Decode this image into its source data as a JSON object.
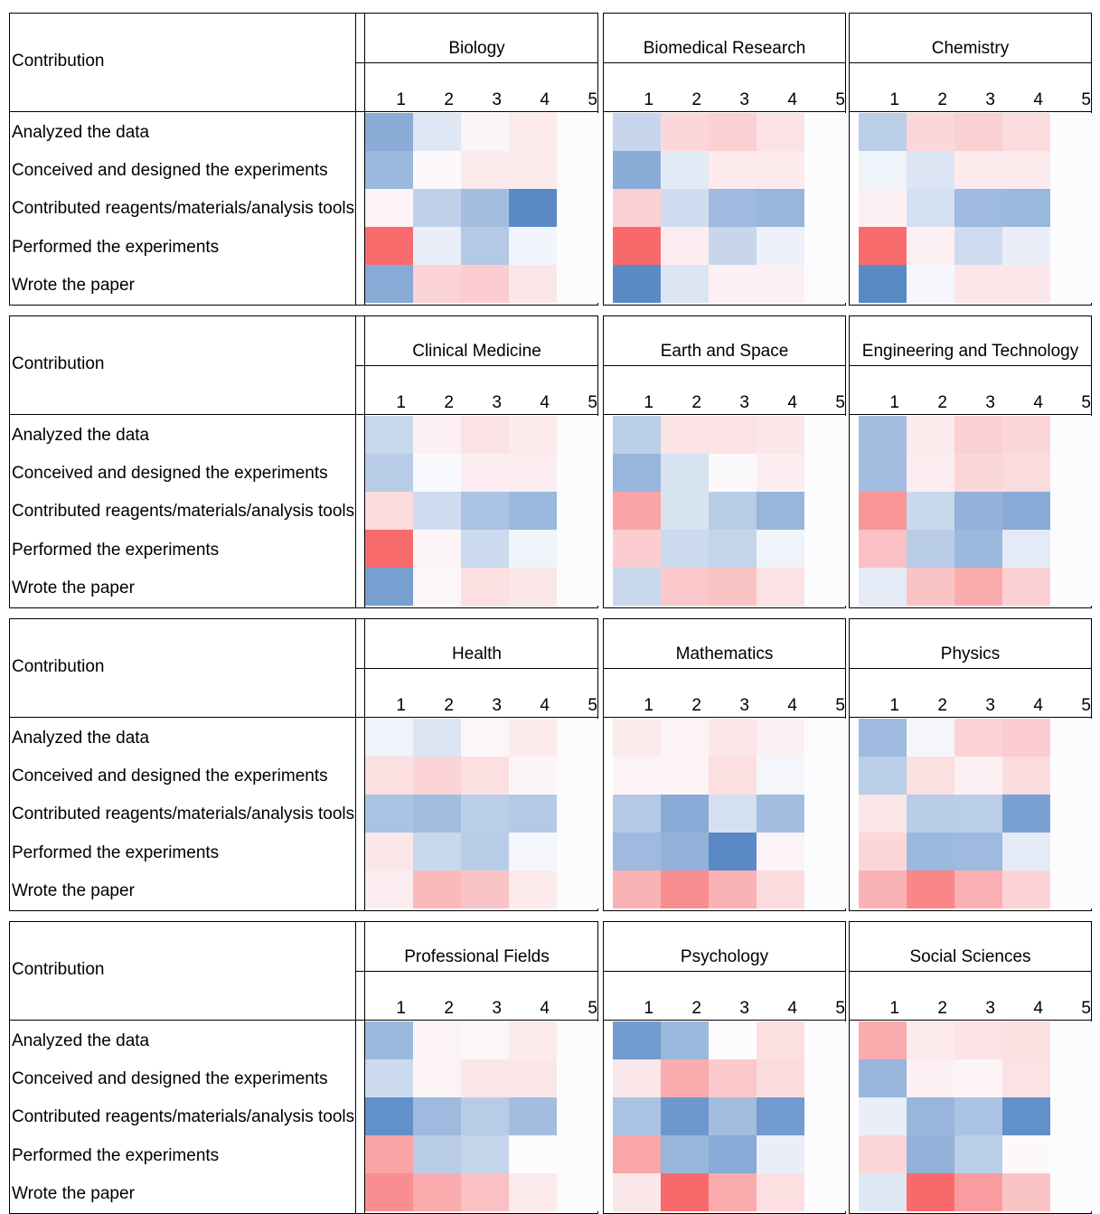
{
  "chart_data": {
    "type": "heatmap",
    "row_header": "Contribution",
    "rows": [
      "Analyzed the data",
      "Conceived and designed the experiments",
      "Contributed reagents/materials/analysis tools",
      "Performed the experiments",
      "Wrote the paper"
    ],
    "columns": [
      "1",
      "2",
      "3",
      "4",
      "5"
    ],
    "color_scale": {
      "low_red": "#f8696b",
      "mid": "#fcfcff",
      "high_blue": "#5a8ac6",
      "range": [
        -1,
        1
      ]
    },
    "panels": [
      {
        "title": "Biology",
        "values": [
          [
            0.7,
            0.18,
            -0.05,
            -0.12,
            0
          ],
          [
            0.6,
            -0.03,
            -0.12,
            -0.12,
            0
          ],
          [
            -0.06,
            0.38,
            0.55,
            1.0,
            0
          ],
          [
            -0.98,
            0.12,
            0.45,
            0.06,
            0
          ],
          [
            0.72,
            -0.28,
            -0.32,
            -0.15,
            0
          ]
        ]
      },
      {
        "title": "Biomedical Research",
        "values": [
          [
            0.33,
            -0.25,
            -0.3,
            -0.18,
            0
          ],
          [
            0.7,
            0.16,
            -0.12,
            -0.12,
            0
          ],
          [
            -0.3,
            0.28,
            0.58,
            0.62,
            0
          ],
          [
            -1.0,
            -0.1,
            0.33,
            0.1,
            0
          ],
          [
            1.0,
            0.2,
            -0.08,
            -0.08,
            0
          ]
        ]
      },
      {
        "title": "Chemistry",
        "values": [
          [
            0.4,
            -0.25,
            -0.3,
            -0.22,
            0
          ],
          [
            0.08,
            0.2,
            -0.12,
            -0.12,
            0
          ],
          [
            -0.08,
            0.25,
            0.58,
            0.6,
            0
          ],
          [
            -0.98,
            -0.08,
            0.28,
            0.12,
            0
          ],
          [
            1.0,
            0.04,
            -0.15,
            -0.15,
            0
          ]
        ]
      },
      {
        "title": "Clinical Medicine",
        "values": [
          [
            0.32,
            -0.08,
            -0.18,
            -0.12,
            0
          ],
          [
            0.42,
            0.02,
            -0.1,
            -0.1,
            0
          ],
          [
            -0.22,
            0.28,
            0.5,
            0.6,
            0
          ],
          [
            -0.98,
            -0.05,
            0.3,
            0.08,
            0
          ],
          [
            0.82,
            -0.04,
            -0.2,
            -0.15,
            0
          ]
        ]
      },
      {
        "title": "Earth and Space",
        "values": [
          [
            0.4,
            -0.18,
            -0.18,
            -0.15,
            0
          ],
          [
            0.62,
            0.22,
            -0.02,
            -0.1,
            0
          ],
          [
            -0.6,
            0.22,
            0.42,
            0.62,
            0
          ],
          [
            -0.32,
            0.3,
            0.35,
            0.08,
            0
          ],
          [
            0.32,
            -0.35,
            -0.38,
            -0.18,
            0
          ]
        ]
      },
      {
        "title": "Engineering and Technology",
        "values": [
          [
            0.55,
            -0.12,
            -0.3,
            -0.25,
            0
          ],
          [
            0.55,
            -0.1,
            -0.25,
            -0.22,
            0
          ],
          [
            -0.7,
            0.32,
            0.65,
            0.72,
            0
          ],
          [
            -0.4,
            0.42,
            0.6,
            0.15,
            0
          ],
          [
            0.15,
            -0.38,
            -0.55,
            -0.3,
            0
          ]
        ]
      },
      {
        "title": "Health",
        "values": [
          [
            0.08,
            0.2,
            -0.04,
            -0.12,
            0
          ],
          [
            -0.2,
            -0.28,
            -0.2,
            -0.05,
            0
          ],
          [
            0.5,
            0.55,
            0.4,
            0.45,
            0
          ],
          [
            -0.15,
            0.32,
            0.42,
            0.05,
            0
          ],
          [
            -0.1,
            -0.45,
            -0.38,
            -0.12,
            0
          ]
        ]
      },
      {
        "title": "Mathematics",
        "values": [
          [
            -0.12,
            -0.06,
            -0.15,
            -0.08,
            0
          ],
          [
            -0.06,
            -0.06,
            -0.2,
            0.05,
            0
          ],
          [
            0.45,
            0.72,
            0.25,
            0.55,
            0
          ],
          [
            0.58,
            0.65,
            1.0,
            -0.06,
            0
          ],
          [
            -0.5,
            -0.75,
            -0.5,
            -0.22,
            0
          ]
        ]
      },
      {
        "title": "Physics",
        "values": [
          [
            0.58,
            0.05,
            -0.28,
            -0.32,
            0
          ],
          [
            0.4,
            -0.2,
            -0.08,
            -0.22,
            0
          ],
          [
            -0.15,
            0.42,
            0.4,
            0.8,
            0
          ],
          [
            -0.25,
            0.6,
            0.58,
            0.15,
            0
          ],
          [
            -0.5,
            -0.8,
            -0.52,
            -0.28,
            0
          ]
        ]
      },
      {
        "title": "Professional Fields",
        "values": [
          [
            0.6,
            -0.06,
            -0.04,
            -0.12,
            0
          ],
          [
            0.3,
            -0.06,
            -0.15,
            -0.15,
            0
          ],
          [
            0.95,
            0.58,
            0.42,
            0.55,
            0
          ],
          [
            -0.6,
            0.42,
            0.35,
            0.0,
            0
          ],
          [
            -0.75,
            -0.55,
            -0.4,
            -0.12,
            0
          ]
        ]
      },
      {
        "title": "Psychology",
        "values": [
          [
            0.85,
            0.6,
            0.0,
            -0.2,
            0
          ],
          [
            -0.15,
            -0.55,
            -0.35,
            -0.22,
            0
          ],
          [
            0.5,
            0.88,
            0.55,
            0.85,
            0
          ],
          [
            -0.58,
            0.62,
            0.72,
            0.12,
            0
          ],
          [
            -0.15,
            -1.0,
            -0.55,
            -0.2,
            0
          ]
        ]
      },
      {
        "title": "Social Sciences",
        "values": [
          [
            -0.55,
            -0.12,
            -0.18,
            -0.2,
            0
          ],
          [
            0.62,
            -0.08,
            -0.06,
            -0.18,
            0
          ],
          [
            0.12,
            0.62,
            0.5,
            0.95,
            0
          ],
          [
            -0.25,
            0.65,
            0.4,
            -0.03,
            0
          ],
          [
            0.18,
            -1.0,
            -0.65,
            -0.38,
            0
          ]
        ]
      }
    ]
  }
}
